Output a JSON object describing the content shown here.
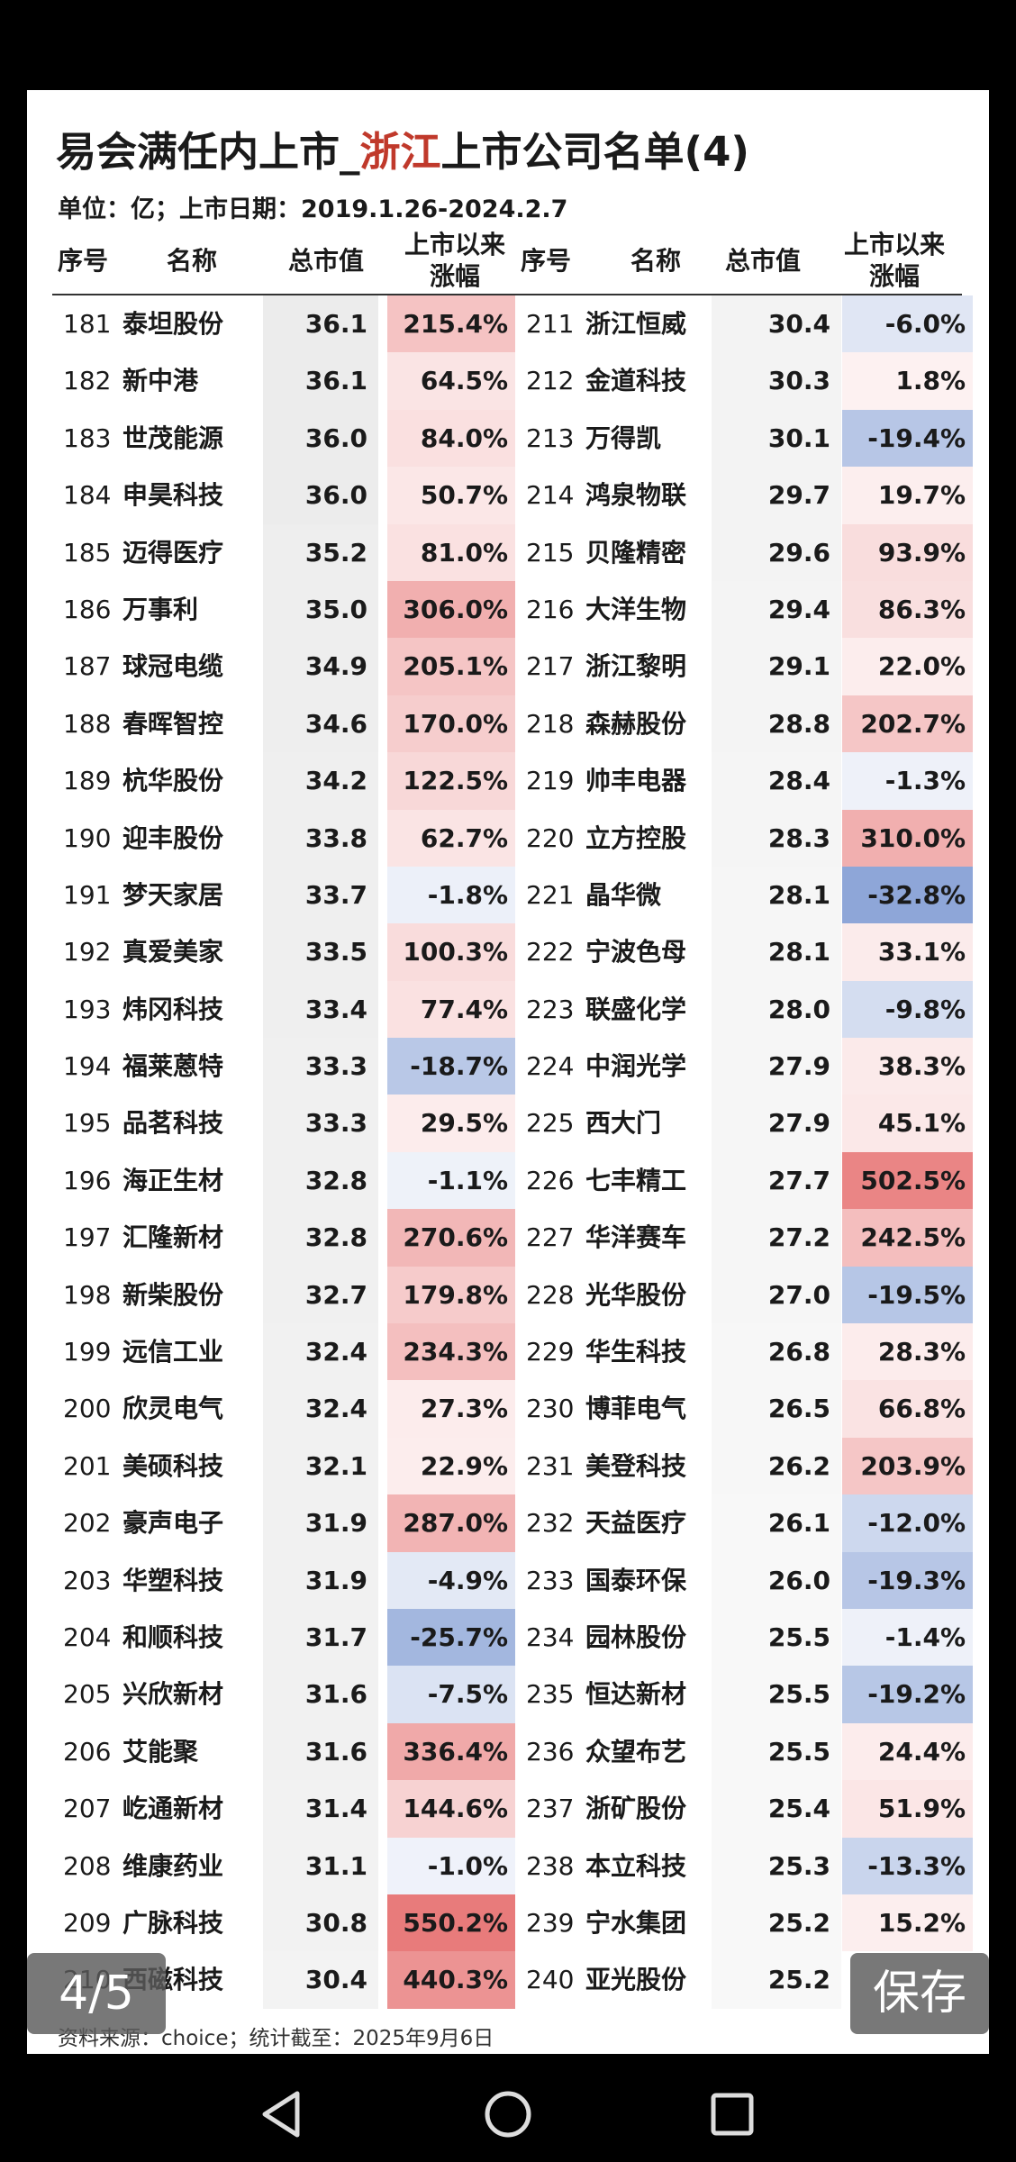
{
  "title": {
    "prefix": "易会满任内上市_",
    "highlight": "浙江",
    "suffix": "上市公司名单(4)"
  },
  "subtitle": "单位：亿；上市日期：2019.1.26-2024.2.7",
  "headers": {
    "idx": "序号",
    "name": "名称",
    "cap": "总市值",
    "chg1": "上市以来",
    "chg2": "涨幅"
  },
  "colors": {
    "positive": "#e05a5a",
    "negative": "#5b7fc7",
    "highlight": "#c0392b"
  },
  "left_rows": [
    {
      "idx": "181",
      "name": "泰坦股份",
      "cap": "36.1",
      "chg": "215.4%",
      "v": 215.4
    },
    {
      "idx": "182",
      "name": "新中港",
      "cap": "36.1",
      "chg": "64.5%",
      "v": 64.5
    },
    {
      "idx": "183",
      "name": "世茂能源",
      "cap": "36.0",
      "chg": "84.0%",
      "v": 84.0
    },
    {
      "idx": "184",
      "name": "申昊科技",
      "cap": "36.0",
      "chg": "50.7%",
      "v": 50.7
    },
    {
      "idx": "185",
      "name": "迈得医疗",
      "cap": "35.2",
      "chg": "81.0%",
      "v": 81.0
    },
    {
      "idx": "186",
      "name": "万事利",
      "cap": "35.0",
      "chg": "306.0%",
      "v": 306.0
    },
    {
      "idx": "187",
      "name": "球冠电缆",
      "cap": "34.9",
      "chg": "205.1%",
      "v": 205.1
    },
    {
      "idx": "188",
      "name": "春晖智控",
      "cap": "34.6",
      "chg": "170.0%",
      "v": 170.0
    },
    {
      "idx": "189",
      "name": "杭华股份",
      "cap": "34.2",
      "chg": "122.5%",
      "v": 122.5
    },
    {
      "idx": "190",
      "name": "迎丰股份",
      "cap": "33.8",
      "chg": "62.7%",
      "v": 62.7
    },
    {
      "idx": "191",
      "name": "梦天家居",
      "cap": "33.7",
      "chg": "-1.8%",
      "v": -1.8
    },
    {
      "idx": "192",
      "name": "真爱美家",
      "cap": "33.5",
      "chg": "100.3%",
      "v": 100.3
    },
    {
      "idx": "193",
      "name": "炜冈科技",
      "cap": "33.4",
      "chg": "77.4%",
      "v": 77.4
    },
    {
      "idx": "194",
      "name": "福莱蒽特",
      "cap": "33.3",
      "chg": "-18.7%",
      "v": -18.7
    },
    {
      "idx": "195",
      "name": "品茗科技",
      "cap": "33.3",
      "chg": "29.5%",
      "v": 29.5
    },
    {
      "idx": "196",
      "name": "海正生材",
      "cap": "32.8",
      "chg": "-1.1%",
      "v": -1.1
    },
    {
      "idx": "197",
      "name": "汇隆新材",
      "cap": "32.8",
      "chg": "270.6%",
      "v": 270.6
    },
    {
      "idx": "198",
      "name": "新柴股份",
      "cap": "32.7",
      "chg": "179.8%",
      "v": 179.8
    },
    {
      "idx": "199",
      "name": "远信工业",
      "cap": "32.4",
      "chg": "234.3%",
      "v": 234.3
    },
    {
      "idx": "200",
      "name": "欣灵电气",
      "cap": "32.4",
      "chg": "27.3%",
      "v": 27.3
    },
    {
      "idx": "201",
      "name": "美硕科技",
      "cap": "32.1",
      "chg": "22.9%",
      "v": 22.9
    },
    {
      "idx": "202",
      "name": "豪声电子",
      "cap": "31.9",
      "chg": "287.0%",
      "v": 287.0
    },
    {
      "idx": "203",
      "name": "华塑科技",
      "cap": "31.9",
      "chg": "-4.9%",
      "v": -4.9
    },
    {
      "idx": "204",
      "name": "和顺科技",
      "cap": "31.7",
      "chg": "-25.7%",
      "v": -25.7
    },
    {
      "idx": "205",
      "name": "兴欣新材",
      "cap": "31.6",
      "chg": "-7.5%",
      "v": -7.5
    },
    {
      "idx": "206",
      "name": "艾能聚",
      "cap": "31.6",
      "chg": "336.4%",
      "v": 336.4
    },
    {
      "idx": "207",
      "name": "屹通新材",
      "cap": "31.4",
      "chg": "144.6%",
      "v": 144.6
    },
    {
      "idx": "208",
      "name": "维康药业",
      "cap": "31.1",
      "chg": "-1.0%",
      "v": -1.0
    },
    {
      "idx": "209",
      "name": "广脉科技",
      "cap": "30.8",
      "chg": "550.2%",
      "v": 550.2
    },
    {
      "idx": "210",
      "name": "西磁科技",
      "cap": "30.4",
      "chg": "440.3%",
      "v": 440.3
    }
  ],
  "right_rows": [
    {
      "idx": "211",
      "name": "浙江恒威",
      "cap": "30.4",
      "chg": "-6.0%",
      "v": -6.0
    },
    {
      "idx": "212",
      "name": "金道科技",
      "cap": "30.3",
      "chg": "1.8%",
      "v": 1.8
    },
    {
      "idx": "213",
      "name": "万得凯",
      "cap": "30.1",
      "chg": "-19.4%",
      "v": -19.4
    },
    {
      "idx": "214",
      "name": "鸿泉物联",
      "cap": "29.7",
      "chg": "19.7%",
      "v": 19.7
    },
    {
      "idx": "215",
      "name": "贝隆精密",
      "cap": "29.6",
      "chg": "93.9%",
      "v": 93.9
    },
    {
      "idx": "216",
      "name": "大洋生物",
      "cap": "29.4",
      "chg": "86.3%",
      "v": 86.3
    },
    {
      "idx": "217",
      "name": "浙江黎明",
      "cap": "29.1",
      "chg": "22.0%",
      "v": 22.0
    },
    {
      "idx": "218",
      "name": "森赫股份",
      "cap": "28.8",
      "chg": "202.7%",
      "v": 202.7
    },
    {
      "idx": "219",
      "name": "帅丰电器",
      "cap": "28.4",
      "chg": "-1.3%",
      "v": -1.3
    },
    {
      "idx": "220",
      "name": "立方控股",
      "cap": "28.3",
      "chg": "310.0%",
      "v": 310.0
    },
    {
      "idx": "221",
      "name": "晶华微",
      "cap": "28.1",
      "chg": "-32.8%",
      "v": -32.8
    },
    {
      "idx": "222",
      "name": "宁波色母",
      "cap": "28.1",
      "chg": "33.1%",
      "v": 33.1
    },
    {
      "idx": "223",
      "name": "联盛化学",
      "cap": "28.0",
      "chg": "-9.8%",
      "v": -9.8
    },
    {
      "idx": "224",
      "name": "中润光学",
      "cap": "27.9",
      "chg": "38.3%",
      "v": 38.3
    },
    {
      "idx": "225",
      "name": "西大门",
      "cap": "27.9",
      "chg": "45.1%",
      "v": 45.1
    },
    {
      "idx": "226",
      "name": "七丰精工",
      "cap": "27.7",
      "chg": "502.5%",
      "v": 502.5
    },
    {
      "idx": "227",
      "name": "华洋赛车",
      "cap": "27.2",
      "chg": "242.5%",
      "v": 242.5
    },
    {
      "idx": "228",
      "name": "光华股份",
      "cap": "27.0",
      "chg": "-19.5%",
      "v": -19.5
    },
    {
      "idx": "229",
      "name": "华生科技",
      "cap": "26.8",
      "chg": "28.3%",
      "v": 28.3
    },
    {
      "idx": "230",
      "name": "博菲电气",
      "cap": "26.5",
      "chg": "66.8%",
      "v": 66.8
    },
    {
      "idx": "231",
      "name": "美登科技",
      "cap": "26.2",
      "chg": "203.9%",
      "v": 203.9
    },
    {
      "idx": "232",
      "name": "天益医疗",
      "cap": "26.1",
      "chg": "-12.0%",
      "v": -12.0
    },
    {
      "idx": "233",
      "name": "国泰环保",
      "cap": "26.0",
      "chg": "-19.3%",
      "v": -19.3
    },
    {
      "idx": "234",
      "name": "园林股份",
      "cap": "25.5",
      "chg": "-1.4%",
      "v": -1.4
    },
    {
      "idx": "235",
      "name": "恒达新材",
      "cap": "25.5",
      "chg": "-19.2%",
      "v": -19.2
    },
    {
      "idx": "236",
      "name": "众望布艺",
      "cap": "25.5",
      "chg": "24.4%",
      "v": 24.4
    },
    {
      "idx": "237",
      "name": "浙矿股份",
      "cap": "25.4",
      "chg": "51.9%",
      "v": 51.9
    },
    {
      "idx": "238",
      "name": "本立科技",
      "cap": "25.3",
      "chg": "-13.3%",
      "v": -13.3
    },
    {
      "idx": "239",
      "name": "宁水集团",
      "cap": "25.2",
      "chg": "15.2%",
      "v": 15.2
    },
    {
      "idx": "240",
      "name": "亚光股份",
      "cap": "25.2",
      "chg": "",
      "v": 0
    }
  ],
  "source": "资料来源：choice；统计截至：2025年9月6日",
  "page_indicator": "4/5",
  "save_label": "保存",
  "navbar_icons": [
    "back-icon",
    "home-icon",
    "recents-icon"
  ]
}
